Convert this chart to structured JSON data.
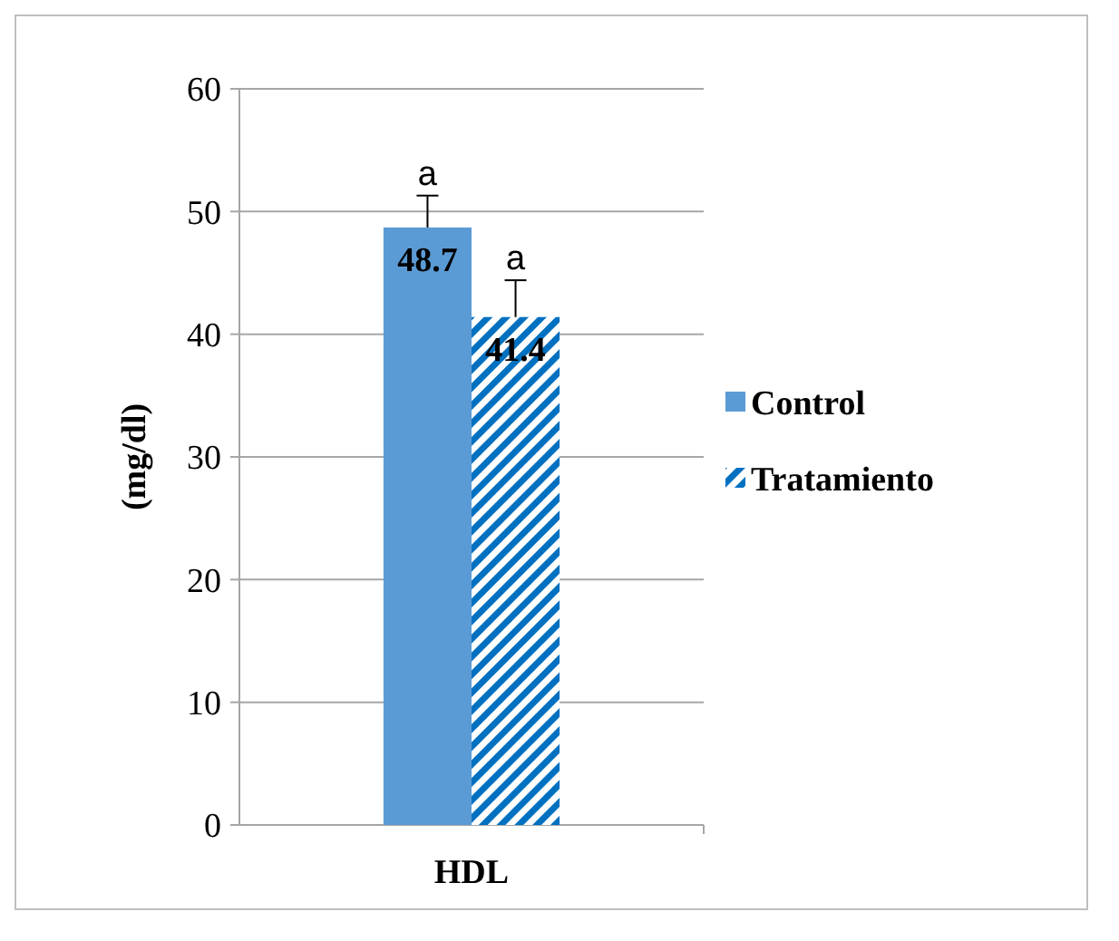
{
  "chart_data": {
    "type": "bar",
    "ylabel": "(mg/dl)",
    "categories": [
      "HDL"
    ],
    "series": [
      {
        "name": "Control",
        "color": "#5b9bd5",
        "values": [
          48.7
        ],
        "errors": [
          2.6
        ]
      },
      {
        "name": "Tratamiento",
        "color": "#0070c0",
        "values": [
          41.4
        ],
        "errors": [
          3.0
        ]
      }
    ],
    "ylim": [
      0,
      60
    ],
    "yticks": [
      0,
      10,
      20,
      30,
      40,
      50,
      60
    ],
    "grid": "y",
    "legend": "right",
    "data_labels": true,
    "annotations": [
      "a",
      "a"
    ]
  }
}
